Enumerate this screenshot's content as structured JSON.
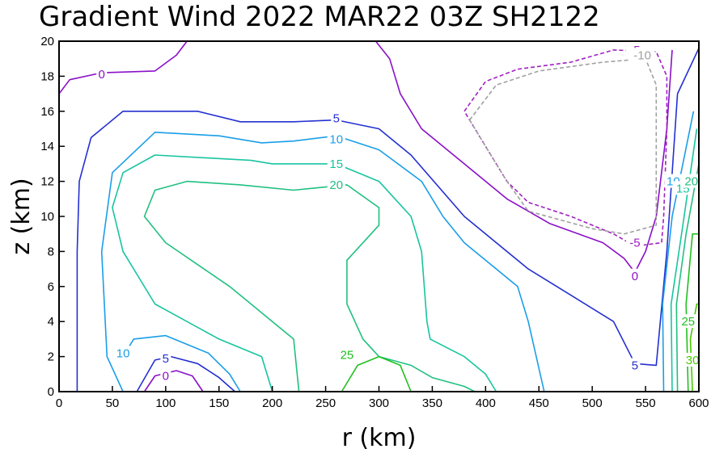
{
  "chart_data": {
    "type": "contour",
    "title": "Gradient Wind 2022 MAR22 03Z   SH2122",
    "xlabel": "r (km)",
    "ylabel": "z (km)",
    "xlim": [
      0,
      600
    ],
    "ylim": [
      0,
      20
    ],
    "xticks": [
      0,
      50,
      100,
      150,
      200,
      250,
      300,
      350,
      400,
      450,
      500,
      550,
      600
    ],
    "yticks": [
      0,
      2,
      4,
      6,
      8,
      10,
      12,
      14,
      16,
      18,
      20
    ],
    "grid": false,
    "contours": [
      {
        "level": 0,
        "color": "#8a10c8",
        "dash": false,
        "label": "0",
        "lines": [
          {
            "points": [
              [
                0,
                17
              ],
              [
                10,
                17.8
              ],
              [
                40,
                18.2
              ],
              [
                90,
                18.3
              ],
              [
                110,
                19.2
              ],
              [
                120,
                20
              ]
            ],
            "labels": [
              [
                40,
                18.1
              ]
            ]
          },
          {
            "points": [
              [
                297,
                20
              ],
              [
                310,
                19
              ],
              [
                320,
                17
              ],
              [
                340,
                15
              ],
              [
                380,
                13
              ],
              [
                420,
                11
              ],
              [
                460,
                9.6
              ],
              [
                510,
                8.5
              ],
              [
                530,
                7.6
              ],
              [
                540,
                6.8
              ],
              [
                550,
                8
              ],
              [
                560,
                10
              ],
              [
                570,
                15
              ],
              [
                575,
                19.5
              ]
            ],
            "labels": [
              [
                540,
                6.6
              ]
            ]
          },
          {
            "points": [
              [
                80,
                0
              ],
              [
                90,
                0.9
              ],
              [
                110,
                1.2
              ],
              [
                125,
                0.9
              ],
              [
                135,
                0
              ]
            ],
            "labels": [
              [
                100,
                0.9
              ]
            ]
          }
        ]
      },
      {
        "level": 5,
        "color": "#2430d0",
        "dash": false,
        "label": "5",
        "lines": [
          {
            "points": [
              [
                17,
                0
              ],
              [
                17,
                8
              ],
              [
                19,
                12
              ],
              [
                30,
                14.5
              ],
              [
                60,
                16
              ],
              [
                130,
                16
              ],
              [
                170,
                15.4
              ],
              [
                220,
                15.4
              ],
              [
                260,
                15.5
              ],
              [
                300,
                15
              ],
              [
                330,
                13.5
              ],
              [
                380,
                10
              ],
              [
                440,
                7
              ],
              [
                480,
                5.5
              ],
              [
                520,
                4
              ],
              [
                540,
                1.6
              ],
              [
                560,
                1.5
              ],
              [
                570,
                8
              ],
              [
                580,
                17
              ],
              [
                600,
                19.6
              ]
            ],
            "labels": [
              [
                260,
                15.6
              ],
              [
                540,
                1.5
              ]
            ]
          },
          {
            "points": [
              [
                73,
                0
              ],
              [
                90,
                1.8
              ],
              [
                105,
                2
              ],
              [
                130,
                1.6
              ],
              [
                150,
                0.8
              ],
              [
                165,
                0
              ]
            ],
            "labels": [
              [
                100,
                1.9
              ]
            ]
          }
        ]
      },
      {
        "level": 10,
        "color": "#1a9ee8",
        "dash": false,
        "label": "10",
        "lines": [
          {
            "points": [
              [
                60,
                0
              ],
              [
                45,
                2
              ],
              [
                40,
                8
              ],
              [
                50,
                12.5
              ],
              [
                90,
                14.8
              ],
              [
                150,
                14.6
              ],
              [
                190,
                14.2
              ],
              [
                220,
                14.3
              ],
              [
                260,
                14.6
              ],
              [
                300,
                13.8
              ],
              [
                340,
                12
              ],
              [
                360,
                10
              ],
              [
                380,
                8.5
              ],
              [
                430,
                6
              ],
              [
                440,
                4
              ],
              [
                455,
                0
              ]
            ],
            "labels": [
              [
                260,
                14.4
              ]
            ]
          },
          {
            "points": [
              [
                60,
                2
              ],
              [
                70,
                3
              ],
              [
                100,
                3.2
              ],
              [
                140,
                2.2
              ],
              [
                160,
                1
              ],
              [
                170,
                0
              ]
            ],
            "labels": [
              [
                60,
                2.2
              ]
            ]
          },
          {
            "points": [
              [
                567,
                0
              ],
              [
                566,
                5
              ],
              [
                575,
                10
              ],
              [
                595,
                16
              ]
            ],
            "labels": [
              [
                576,
                12
              ]
            ]
          }
        ]
      },
      {
        "level": 15,
        "color": "#18c4a0",
        "dash": false,
        "label": "15",
        "lines": [
          {
            "points": [
              [
                200,
                0
              ],
              [
                190,
                2
              ],
              [
                150,
                3
              ],
              [
                90,
                5
              ],
              [
                60,
                8
              ],
              [
                50,
                10.5
              ],
              [
                60,
                12.5
              ],
              [
                90,
                13.5
              ],
              [
                180,
                13.2
              ],
              [
                200,
                13
              ],
              [
                260,
                13
              ],
              [
                300,
                12
              ],
              [
                330,
                10
              ],
              [
                340,
                8
              ],
              [
                345,
                4
              ],
              [
                348,
                3
              ],
              [
                380,
                2
              ],
              [
                400,
                1
              ],
              [
                410,
                0
              ]
            ],
            "labels": [
              [
                260,
                13
              ]
            ]
          },
          {
            "points": [
              [
                575,
                0
              ],
              [
                574,
                5
              ],
              [
                585,
                9.5
              ],
              [
                598,
                15
              ]
            ],
            "labels": [
              [
                585,
                11.6
              ]
            ]
          }
        ]
      },
      {
        "level": 20,
        "color": "#20c080",
        "dash": false,
        "label": "20",
        "lines": [
          {
            "points": [
              [
                225,
                0
              ],
              [
                220,
                3
              ],
              [
                200,
                4
              ],
              [
                160,
                6
              ],
              [
                100,
                8.5
              ],
              [
                80,
                10
              ],
              [
                90,
                11.5
              ],
              [
                120,
                12
              ],
              [
                170,
                11.8
              ],
              [
                220,
                11.5
              ],
              [
                270,
                11.8
              ],
              [
                300,
                10.5
              ],
              [
                300,
                9.5
              ],
              [
                270,
                7.5
              ],
              [
                270,
                5
              ],
              [
                285,
                3
              ],
              [
                300,
                2
              ],
              [
                330,
                1.5
              ],
              [
                350,
                0.8
              ],
              [
                380,
                0.3
              ],
              [
                390,
                0
              ]
            ],
            "labels": [
              [
                260,
                11.8
              ]
            ]
          },
          {
            "points": [
              [
                580,
                0
              ],
              [
                579,
                5
              ],
              [
                588,
                9
              ],
              [
                600,
                13
              ]
            ],
            "labels": [
              [
                593,
                12
              ]
            ]
          }
        ]
      },
      {
        "level": 25,
        "color": "#20c020",
        "dash": false,
        "label": "25",
        "lines": [
          {
            "points": [
              [
                265,
                0
              ],
              [
                280,
                1.5
              ],
              [
                300,
                2
              ],
              [
                320,
                1.5
              ],
              [
                330,
                0
              ]
            ],
            "labels": [
              [
                270,
                2.1
              ]
            ]
          },
          {
            "points": [
              [
                590,
                0
              ],
              [
                588,
                5
              ],
              [
                594,
                9
              ],
              [
                600,
                9
              ]
            ],
            "labels": [
              [
                590,
                4
              ]
            ]
          }
        ]
      },
      {
        "level": 30,
        "color": "#48c800",
        "dash": false,
        "label": "30",
        "lines": [
          {
            "points": [
              [
                594,
                0
              ],
              [
                592,
                3
              ],
              [
                598,
                5
              ],
              [
                600,
                5
              ]
            ],
            "labels": [
              [
                594,
                1.8
              ]
            ]
          }
        ]
      },
      {
        "level": -5,
        "color": "#a020c0",
        "dash": true,
        "label": "-5",
        "lines": [
          {
            "points": [
              [
                380,
                16
              ],
              [
                400,
                17.7
              ],
              [
                430,
                18.4
              ],
              [
                480,
                18.8
              ],
              [
                520,
                19.5
              ],
              [
                560,
                19.4
              ],
              [
                570,
                18
              ],
              [
                570,
                15
              ],
              [
                567,
                10
              ],
              [
                565,
                8.5
              ],
              [
                540,
                8.3
              ],
              [
                520,
                9
              ],
              [
                480,
                10
              ],
              [
                440,
                10.8
              ],
              [
                420,
                12
              ],
              [
                400,
                14
              ],
              [
                380,
                16
              ]
            ],
            "labels": [
              [
                540,
                8.5
              ],
              [
                540,
                19.5
              ]
            ]
          }
        ]
      },
      {
        "level": -10,
        "color": "#a0a0a0",
        "dash": true,
        "label": "-10",
        "lines": [
          {
            "points": [
              [
                385,
                15.5
              ],
              [
                410,
                17.5
              ],
              [
                450,
                18.3
              ],
              [
                510,
                18.8
              ],
              [
                550,
                19
              ],
              [
                560,
                17.5
              ],
              [
                560,
                13
              ],
              [
                560,
                9.5
              ],
              [
                530,
                9
              ],
              [
                500,
                9.3
              ],
              [
                470,
                9.8
              ],
              [
                440,
                10.3
              ],
              [
                420,
                12
              ],
              [
                400,
                14
              ],
              [
                385,
                15.5
              ]
            ],
            "labels": [
              [
                547,
                19.2
              ]
            ]
          }
        ]
      }
    ]
  }
}
